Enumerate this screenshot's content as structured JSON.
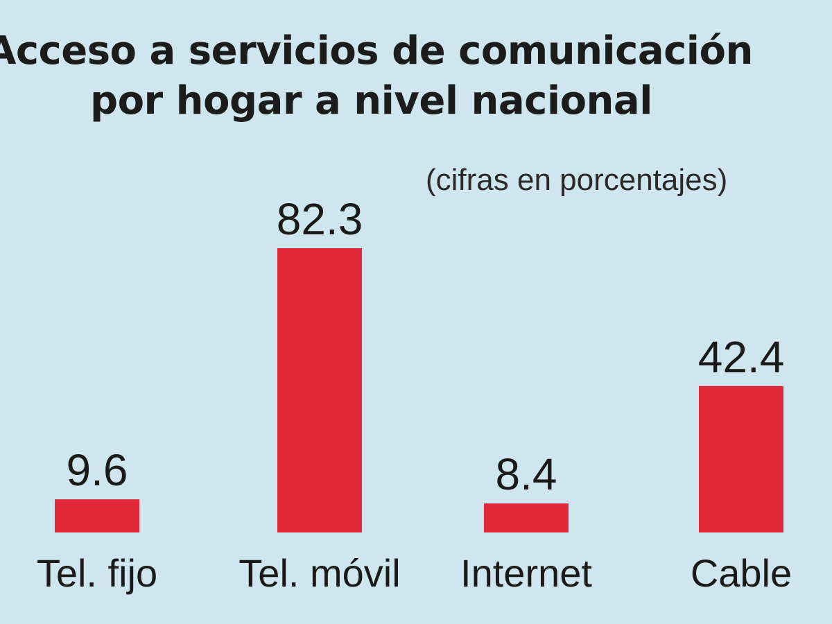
{
  "chart_data": {
    "type": "bar",
    "title": "Acceso a servicios de comunicación por hogar a nivel nacional",
    "title_lines": [
      "Acceso a servicios de comunicación",
      "por hogar a nivel nacional"
    ],
    "subtitle": "(cifras en porcentajes)",
    "categories": [
      "Tel. fijo",
      "Tel. móvil",
      "Internet",
      "Cable"
    ],
    "values": [
      9.6,
      82.3,
      8.4,
      42.4
    ],
    "value_labels": [
      "9.6",
      "82.3",
      "8.4",
      "42.4"
    ],
    "xlabel": "",
    "ylabel": "",
    "ylim": [
      0,
      100
    ],
    "grid": false,
    "legend": "none",
    "colors": {
      "bar": "#e1283a",
      "background": "#cfe6ee",
      "text": "#1a1a1a"
    }
  }
}
